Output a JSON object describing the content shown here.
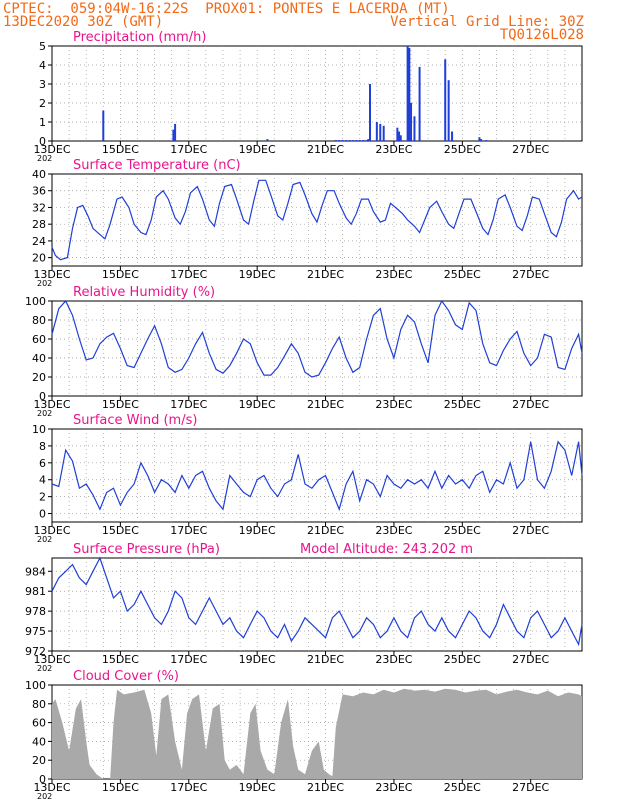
{
  "header": {
    "left_line1": "CPTEC:  059:04W-16:22S  PROX01: PONTES E LACERDA (MT)",
    "left_line2": "13DEC2020 30Z (GMT)",
    "right_line2": "Vertical Grid Line: 30Z",
    "right_line3": "TQ0126L028"
  },
  "colors": {
    "series": "#1f3fd6",
    "title": "#e8148c",
    "header": "#f06a1a",
    "cloud": "#a9a9a9",
    "grid": "#999999"
  },
  "x_tick_labels": [
    "13DEC",
    "15DEC",
    "17DEC",
    "19DEC",
    "21DEC",
    "23DEC",
    "25DEC",
    "27DEC"
  ],
  "year_prefix": "202",
  "chart_data": [
    {
      "id": "precip",
      "type": "bar",
      "title": "Precipitation (mm/h)",
      "x_unit": "days since 13DEC",
      "xlim": [
        0,
        15.5
      ],
      "ylim": [
        0,
        5
      ],
      "yticks": [
        0,
        1,
        2,
        3,
        4,
        5
      ],
      "x": [
        1.5,
        3.55,
        3.6,
        6.3,
        8.3,
        8.4,
        8.5,
        8.6,
        8.7,
        8.8,
        8.9,
        9.0,
        9.1,
        9.2,
        9.25,
        9.3,
        9.5,
        9.6,
        9.7,
        10.1,
        10.15,
        10.2,
        10.4,
        10.45,
        10.5,
        10.6,
        10.75,
        11.5,
        11.6,
        11.7,
        12.5,
        12.55,
        12.7
      ],
      "values": [
        1.6,
        0.6,
        0.9,
        0.1,
        0.05,
        0.05,
        0.05,
        0.05,
        0.05,
        0.05,
        0.05,
        0.05,
        0.05,
        0.05,
        0.1,
        3.0,
        1.0,
        0.9,
        0.8,
        0.7,
        0.5,
        0.3,
        5.0,
        4.9,
        2.0,
        1.3,
        3.9,
        4.3,
        3.2,
        0.5,
        0.2,
        0.1,
        0.05
      ]
    },
    {
      "id": "temp",
      "type": "line",
      "title": "Surface Temperature (nC)",
      "xlim": [
        0,
        15.5
      ],
      "ylim": [
        18,
        40
      ],
      "yticks": [
        20,
        24,
        28,
        32,
        36,
        40
      ],
      "x": [
        0,
        0.1,
        0.25,
        0.45,
        0.6,
        0.75,
        0.9,
        1.05,
        1.2,
        1.4,
        1.55,
        1.7,
        1.9,
        2.05,
        2.25,
        2.4,
        2.6,
        2.75,
        2.9,
        3.05,
        3.25,
        3.4,
        3.6,
        3.75,
        3.9,
        4.05,
        4.25,
        4.4,
        4.6,
        4.75,
        4.9,
        5.05,
        5.25,
        5.4,
        5.6,
        5.75,
        5.9,
        6.05,
        6.25,
        6.4,
        6.6,
        6.75,
        6.9,
        7.05,
        7.25,
        7.4,
        7.6,
        7.75,
        7.9,
        8.05,
        8.25,
        8.4,
        8.6,
        8.75,
        8.9,
        9.05,
        9.25,
        9.4,
        9.6,
        9.75,
        9.9,
        10.05,
        10.25,
        10.4,
        10.6,
        10.75,
        10.9,
        11.05,
        11.25,
        11.4,
        11.6,
        11.75,
        11.9,
        12.05,
        12.25,
        12.4,
        12.6,
        12.75,
        12.9,
        13.05,
        13.25,
        13.4,
        13.6,
        13.75,
        13.9,
        14.05,
        14.25,
        14.4,
        14.6,
        14.75,
        14.9,
        15.05,
        15.25,
        15.4,
        15.5
      ],
      "values": [
        22.5,
        20.5,
        19.5,
        20,
        27,
        32,
        32.5,
        30,
        27,
        25.5,
        24.5,
        28,
        34,
        34.5,
        32,
        28,
        26,
        25.5,
        29,
        34.5,
        36,
        34,
        29.5,
        28,
        31,
        35.5,
        37,
        34,
        29,
        27.5,
        33,
        37,
        37.5,
        34,
        29,
        28,
        33.5,
        38.5,
        38.5,
        35,
        30,
        29,
        33,
        37.5,
        38,
        35,
        30.5,
        28.5,
        32.5,
        36,
        36,
        33,
        29.5,
        28,
        30.5,
        34,
        34,
        31,
        28.5,
        29,
        33,
        32,
        30.5,
        29,
        27.5,
        26,
        29,
        32,
        33.5,
        31,
        28,
        27,
        30.5,
        34,
        34,
        31,
        27,
        25.5,
        29,
        34,
        35,
        32,
        27.5,
        26.5,
        30,
        34.5,
        34,
        30.5,
        26,
        25,
        28.5,
        34,
        36,
        34,
        34.5
      ]
    },
    {
      "id": "rh",
      "type": "line",
      "title": "Relative Humidity (%)",
      "xlim": [
        0,
        15.5
      ],
      "ylim": [
        0,
        100
      ],
      "yticks": [
        0,
        20,
        40,
        60,
        80,
        100
      ],
      "x": [
        0,
        0.2,
        0.4,
        0.6,
        0.8,
        1.0,
        1.2,
        1.4,
        1.6,
        1.8,
        2.0,
        2.2,
        2.4,
        2.6,
        2.8,
        3.0,
        3.2,
        3.4,
        3.6,
        3.8,
        4.0,
        4.2,
        4.4,
        4.6,
        4.8,
        5.0,
        5.2,
        5.4,
        5.6,
        5.8,
        6.0,
        6.2,
        6.4,
        6.6,
        6.8,
        7.0,
        7.2,
        7.4,
        7.6,
        7.8,
        8.0,
        8.2,
        8.4,
        8.6,
        8.8,
        9.0,
        9.2,
        9.4,
        9.6,
        9.8,
        10.0,
        10.2,
        10.4,
        10.6,
        10.8,
        11.0,
        11.2,
        11.4,
        11.6,
        11.8,
        12.0,
        12.2,
        12.4,
        12.6,
        12.8,
        13.0,
        13.2,
        13.4,
        13.6,
        13.8,
        14.0,
        14.2,
        14.4,
        14.6,
        14.8,
        15.0,
        15.2,
        15.4,
        15.5
      ],
      "values": [
        65,
        92,
        100,
        85,
        60,
        38,
        40,
        55,
        62,
        66,
        50,
        32,
        30,
        45,
        60,
        74,
        55,
        30,
        25,
        28,
        40,
        55,
        67,
        45,
        28,
        24,
        32,
        45,
        60,
        55,
        35,
        22,
        22,
        30,
        42,
        55,
        45,
        25,
        20,
        22,
        35,
        50,
        62,
        40,
        25,
        30,
        60,
        85,
        92,
        60,
        40,
        70,
        85,
        78,
        55,
        35,
        85,
        100,
        90,
        75,
        70,
        98,
        90,
        55,
        35,
        32,
        48,
        60,
        68,
        45,
        32,
        40,
        65,
        62,
        30,
        28,
        50,
        65,
        45
      ]
    },
    {
      "id": "wind",
      "type": "line",
      "title": "Surface Wind (m/s)",
      "xlim": [
        0,
        15.5
      ],
      "ylim": [
        -1,
        10
      ],
      "yticks": [
        0,
        2,
        4,
        6,
        8,
        10
      ],
      "x": [
        0,
        0.2,
        0.4,
        0.6,
        0.8,
        1.0,
        1.2,
        1.4,
        1.6,
        1.8,
        2.0,
        2.2,
        2.4,
        2.6,
        2.8,
        3.0,
        3.2,
        3.4,
        3.6,
        3.8,
        4.0,
        4.2,
        4.4,
        4.6,
        4.8,
        5.0,
        5.2,
        5.4,
        5.6,
        5.8,
        6.0,
        6.2,
        6.4,
        6.6,
        6.8,
        7.0,
        7.2,
        7.4,
        7.6,
        7.8,
        8.0,
        8.2,
        8.4,
        8.6,
        8.8,
        9.0,
        9.2,
        9.4,
        9.6,
        9.8,
        10.0,
        10.2,
        10.4,
        10.6,
        10.8,
        11.0,
        11.2,
        11.4,
        11.6,
        11.8,
        12.0,
        12.2,
        12.4,
        12.6,
        12.8,
        13.0,
        13.2,
        13.4,
        13.6,
        13.8,
        14.0,
        14.2,
        14.4,
        14.6,
        14.8,
        15.0,
        15.2,
        15.4,
        15.5
      ],
      "values": [
        3.5,
        3.2,
        7.5,
        6.2,
        3.0,
        3.5,
        2.2,
        0.5,
        2.5,
        3.0,
        1.0,
        2.5,
        3.5,
        6.0,
        4.5,
        2.5,
        4.0,
        3.5,
        2.5,
        4.5,
        3.0,
        4.5,
        5.0,
        3.0,
        1.5,
        0.5,
        4.5,
        3.5,
        2.5,
        2.0,
        4.0,
        4.5,
        3.0,
        2.0,
        3.5,
        4.0,
        7.0,
        3.5,
        3.0,
        4.0,
        4.5,
        2.5,
        0.5,
        3.5,
        5.0,
        1.5,
        4.0,
        3.5,
        2.0,
        4.5,
        3.5,
        3.0,
        4.0,
        3.5,
        4.0,
        3.0,
        5.0,
        3.0,
        4.5,
        3.5,
        4.0,
        3.0,
        4.5,
        5.0,
        2.5,
        4.0,
        3.5,
        6.0,
        3.0,
        4.0,
        8.5,
        4.0,
        3.0,
        5.0,
        8.5,
        7.5,
        4.5,
        8.5,
        4.5
      ]
    },
    {
      "id": "pressure",
      "type": "line",
      "title": "Surface Pressure (hPa)",
      "annotation": "Model Altitude: 243.202 m",
      "xlim": [
        0,
        15.5
      ],
      "ylim": [
        972,
        986
      ],
      "yticks": [
        972,
        975,
        978,
        981,
        984
      ],
      "x": [
        0,
        0.2,
        0.4,
        0.6,
        0.8,
        1.0,
        1.2,
        1.4,
        1.6,
        1.8,
        2.0,
        2.2,
        2.4,
        2.6,
        2.8,
        3.0,
        3.2,
        3.4,
        3.6,
        3.8,
        4.0,
        4.2,
        4.4,
        4.6,
        4.8,
        5.0,
        5.2,
        5.4,
        5.6,
        5.8,
        6.0,
        6.2,
        6.4,
        6.6,
        6.8,
        7.0,
        7.2,
        7.4,
        7.6,
        7.8,
        8.0,
        8.2,
        8.4,
        8.6,
        8.8,
        9.0,
        9.2,
        9.4,
        9.6,
        9.8,
        10.0,
        10.2,
        10.4,
        10.6,
        10.8,
        11.0,
        11.2,
        11.4,
        11.6,
        11.8,
        12.0,
        12.2,
        12.4,
        12.6,
        12.8,
        13.0,
        13.2,
        13.4,
        13.6,
        13.8,
        14.0,
        14.2,
        14.4,
        14.6,
        14.8,
        15.0,
        15.2,
        15.4,
        15.5
      ],
      "values": [
        981,
        983,
        984,
        985,
        983,
        982,
        984,
        986,
        983,
        980,
        981,
        978,
        979,
        981,
        979,
        977,
        976,
        978,
        981,
        980,
        977,
        976,
        978,
        980,
        978,
        976,
        977,
        975,
        974,
        976,
        978,
        977,
        975,
        974,
        976,
        973.5,
        975,
        977,
        976,
        975,
        974,
        977,
        978,
        976,
        974,
        975,
        977,
        976,
        974,
        975,
        977,
        975,
        974,
        977,
        978,
        976,
        975,
        977,
        975,
        974,
        976,
        978,
        977,
        975,
        974,
        976,
        979,
        977,
        975,
        974,
        977,
        978,
        976,
        974,
        975,
        977,
        975,
        973,
        976
      ]
    },
    {
      "id": "cloud",
      "type": "area",
      "title": "Cloud Cover (%)",
      "xlim": [
        0,
        15.5
      ],
      "ylim": [
        0,
        100
      ],
      "yticks": [
        0,
        20,
        40,
        60,
        80,
        100
      ],
      "x": [
        0,
        0.1,
        0.3,
        0.5,
        0.7,
        0.85,
        1.0,
        1.1,
        1.3,
        1.5,
        1.7,
        1.8,
        1.9,
        2.1,
        2.4,
        2.7,
        2.9,
        3.05,
        3.2,
        3.4,
        3.6,
        3.8,
        3.95,
        4.1,
        4.3,
        4.5,
        4.7,
        4.9,
        5.05,
        5.2,
        5.4,
        5.6,
        5.8,
        5.95,
        6.1,
        6.3,
        6.5,
        6.7,
        6.9,
        7.05,
        7.2,
        7.4,
        7.6,
        7.8,
        7.95,
        8.1,
        8.2,
        8.3,
        8.5,
        8.8,
        9.1,
        9.4,
        9.7,
        10.0,
        10.3,
        10.6,
        10.9,
        11.2,
        11.5,
        11.8,
        12.1,
        12.4,
        12.7,
        13.0,
        13.3,
        13.6,
        13.9,
        14.2,
        14.5,
        14.8,
        15.1,
        15.4,
        15.5
      ],
      "values": [
        80,
        85,
        60,
        30,
        75,
        85,
        40,
        15,
        5,
        0,
        0,
        60,
        95,
        90,
        92,
        95,
        70,
        25,
        85,
        90,
        40,
        10,
        70,
        85,
        90,
        30,
        75,
        80,
        20,
        10,
        15,
        5,
        70,
        80,
        30,
        10,
        5,
        60,
        85,
        35,
        10,
        5,
        30,
        40,
        10,
        5,
        3,
        55,
        90,
        88,
        92,
        90,
        95,
        92,
        96,
        94,
        95,
        93,
        96,
        95,
        92,
        94,
        95,
        90,
        93,
        95,
        92,
        90,
        94,
        88,
        92,
        90,
        88
      ]
    }
  ]
}
